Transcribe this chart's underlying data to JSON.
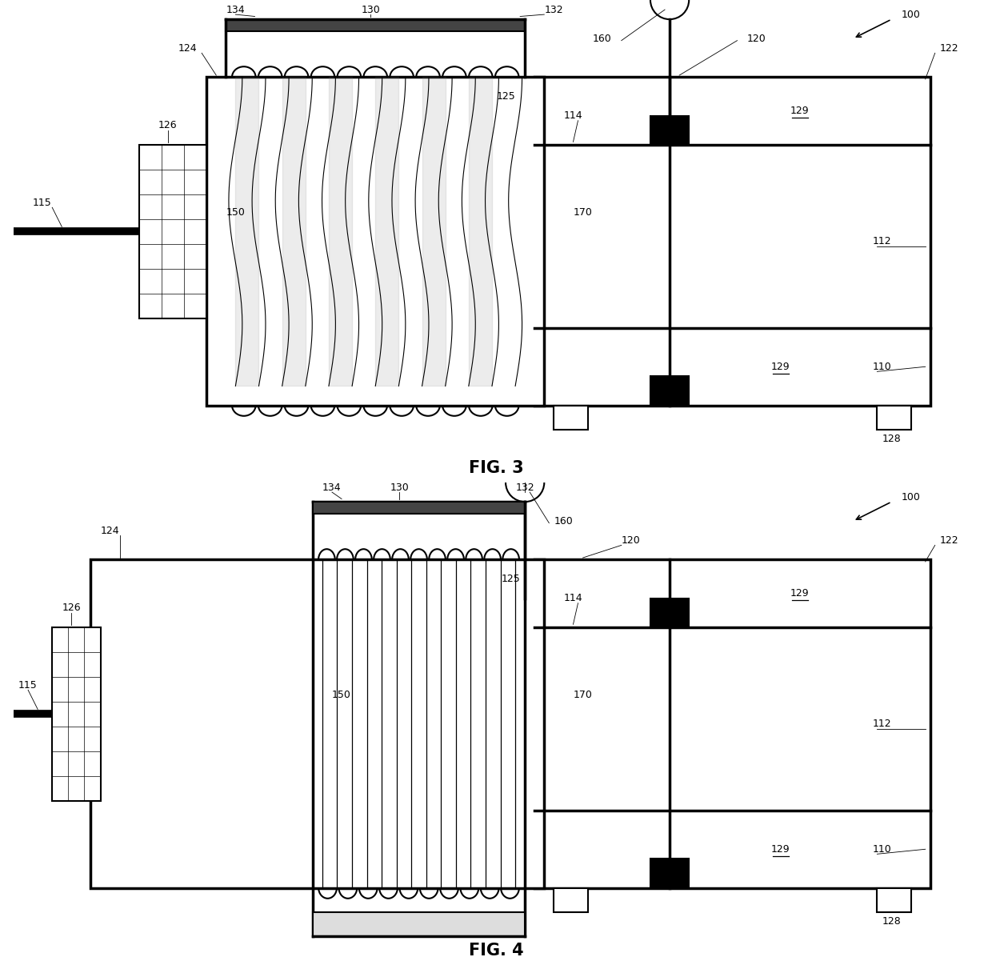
{
  "fig_width": 12.4,
  "fig_height": 12.06,
  "bg_color": "#ffffff",
  "line_color": "#000000",
  "fig3_title": "FIG. 3",
  "fig4_title": "FIG. 4",
  "label_fontsize": 9,
  "title_fontsize": 15
}
